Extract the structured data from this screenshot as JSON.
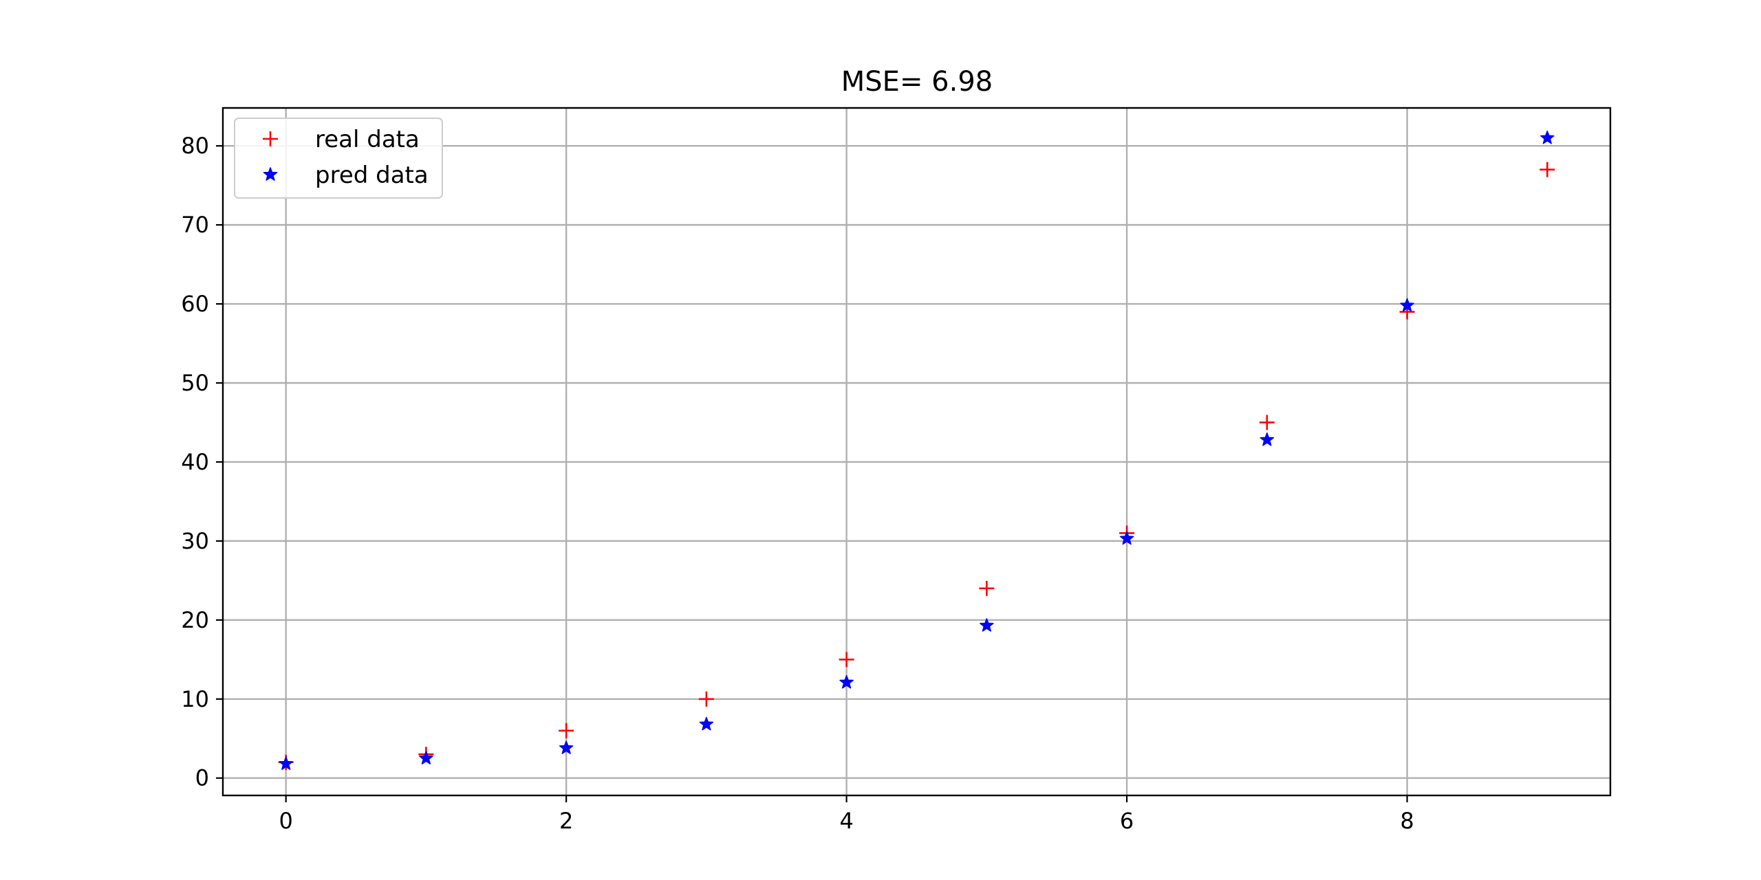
{
  "chart_data": {
    "type": "scatter",
    "title": "MSE= 6.98",
    "xlabel": "",
    "ylabel": "",
    "xlim": [
      -0.45,
      9.45
    ],
    "ylim": [
      -2.2,
      84.8
    ],
    "xticks": [
      0,
      2,
      4,
      6,
      8
    ],
    "yticks": [
      0,
      10,
      20,
      30,
      40,
      50,
      60,
      70,
      80
    ],
    "grid": true,
    "legend_position": "upper-left",
    "series": [
      {
        "name": "real data",
        "marker": "plus",
        "color": "#ff0000",
        "x": [
          0,
          1,
          2,
          3,
          4,
          5,
          6,
          7,
          8,
          9
        ],
        "y": [
          2,
          3,
          6,
          10,
          15,
          24,
          31,
          45,
          59,
          77
        ]
      },
      {
        "name": "pred data",
        "marker": "star",
        "color": "#0000ff",
        "x": [
          0,
          1,
          2,
          3,
          4,
          5,
          6,
          7,
          8,
          9
        ],
        "y": [
          1.8,
          2.5,
          3.8,
          6.8,
          12.1,
          19.3,
          30.3,
          42.8,
          59.8,
          81
        ]
      }
    ]
  }
}
